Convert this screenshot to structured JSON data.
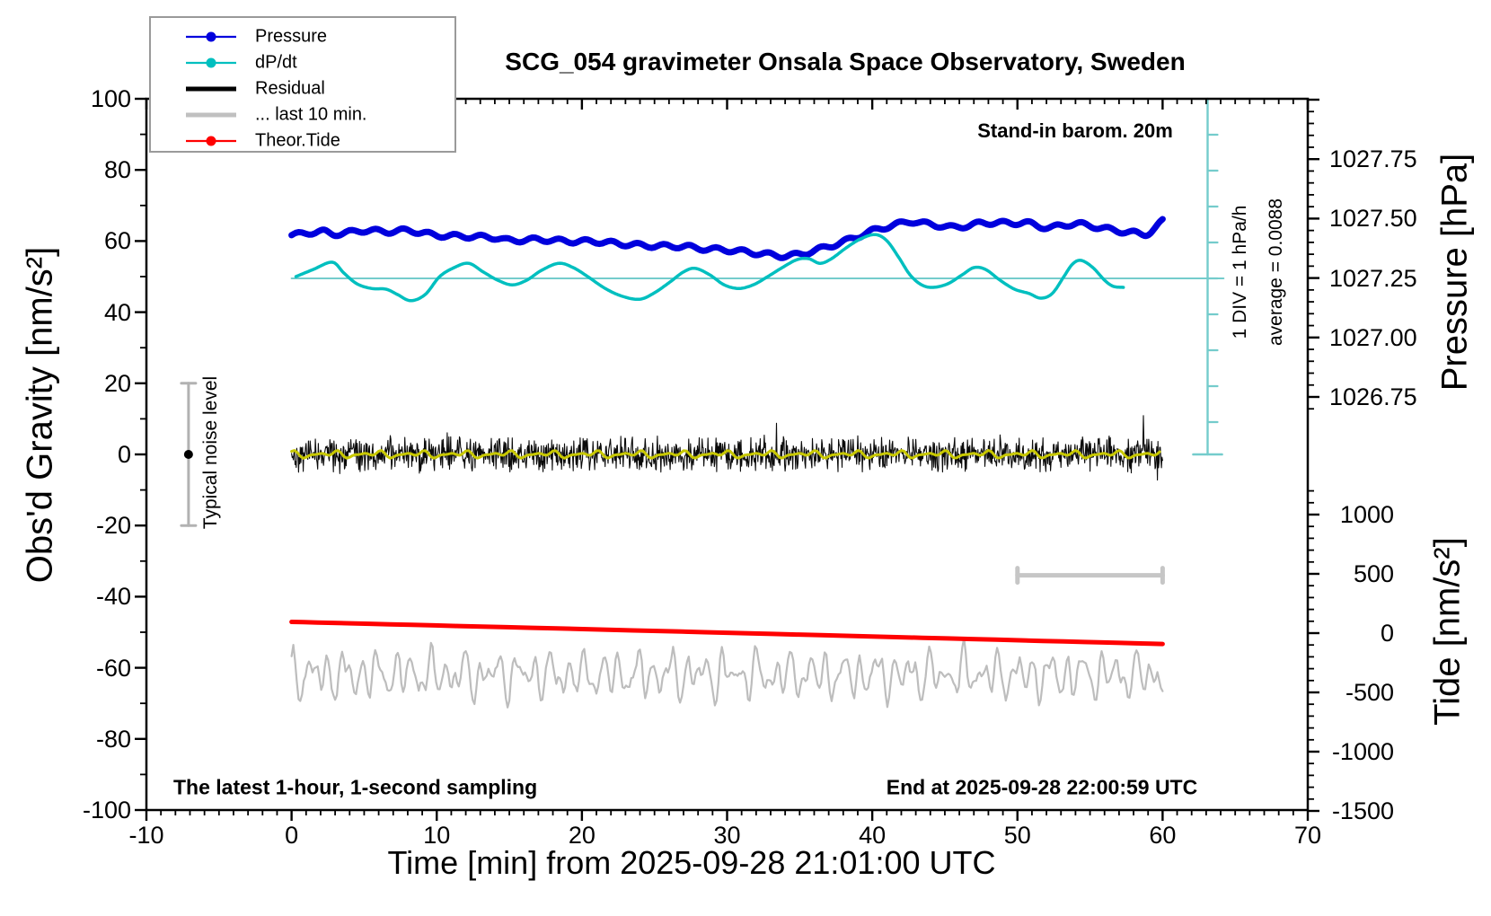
{
  "title": "SCG_054 gravimeter Onsala Space Observatory, Sweden",
  "annotations": {
    "stand_in_barom": "Stand-in barom. 20m",
    "div_scale": "1 DIV = 1 hPa/h",
    "average": "average = 0.0088",
    "typical_noise": "Typical noise level",
    "sampling": "The latest 1-hour, 1-second sampling",
    "end_at": "End at 2025-09-28 22:00:59 UTC"
  },
  "legend": {
    "items": [
      {
        "label": "Pressure",
        "color": "#0000dd",
        "thick": false,
        "marker": true
      },
      {
        "label": "dP/dt",
        "color": "#00bfbf",
        "thick": false,
        "marker": true
      },
      {
        "label": "Residual",
        "color": "#000000",
        "thick": true,
        "marker": false
      },
      {
        "label": "... last 10 min.",
        "color": "#c0c0c0",
        "thick": true,
        "marker": false
      },
      {
        "label": "Theor.Tide",
        "color": "#ff0000",
        "thick": false,
        "marker": true
      }
    ]
  },
  "axes": {
    "x": {
      "title": "Time [min] from 2025-09-28 21:01:00 UTC",
      "min": -10,
      "max": 70,
      "major": 10,
      "minor": 1,
      "tick_labels": [
        "-10",
        "0",
        "10",
        "20",
        "30",
        "40",
        "50",
        "60",
        "70"
      ],
      "tick_values": [
        -10,
        0,
        10,
        20,
        30,
        40,
        50,
        60,
        70
      ]
    },
    "gravity": {
      "title": "Obs'd Gravity [nm/s²]",
      "min": -100,
      "max": 100,
      "major": 20,
      "minor": 10,
      "tick_labels": [
        "100",
        "80",
        "60",
        "40",
        "20",
        "0",
        "-20",
        "-40",
        "-60",
        "-80",
        "-100"
      ],
      "tick_values": [
        100,
        80,
        60,
        40,
        20,
        0,
        -20,
        -40,
        -60,
        -80,
        -100
      ]
    },
    "pressure": {
      "title": "Pressure [hPa]",
      "tick_labels": [
        "1027.75",
        "1027.50",
        "1027.25",
        "1027.00",
        "1026.75"
      ],
      "tick_values": [
        1027.75,
        1027.5,
        1027.25,
        1027.0,
        1026.75
      ],
      "top_value": 1028.0,
      "minor_step": 0.05,
      "major_step": 0.25,
      "minor_floor": 1026.7
    },
    "tide": {
      "title": "Tide [nm/s²]",
      "tick_labels": [
        "1000",
        "500",
        "0",
        "-500",
        "-1000",
        "-1500"
      ],
      "tick_values": [
        1000,
        500,
        0,
        -500,
        -1000,
        -1500
      ],
      "minor_step": 100,
      "major_step": 500,
      "minor_top": 1200,
      "minor_floor": -1500
    }
  },
  "colors": {
    "blue": "#0000dd",
    "cyan": "#00bfbf",
    "cyan_light": "#74cccc",
    "red": "#ff0000",
    "black": "#0a0a0a",
    "yellow": "#c8c800",
    "gray_trace": "#bdbdbd",
    "gray_bar": "#c6c6c6",
    "gray_errorbar": "#b2b2b2"
  },
  "chart_data": {
    "type": "line",
    "title": "SCG_054 gravimeter Onsala Space Observatory, Sweden",
    "xlabel": "Time [min] from 2025-09-28 21:01:00 UTC",
    "x_range_min": [
      -10,
      70
    ],
    "axes_info": {
      "gravity": {
        "label": "Obs'd Gravity [nm/s²]",
        "range": [
          -100,
          100
        ]
      },
      "pressure": {
        "label": "Pressure [hPa]",
        "visible_ticks": [
          1027.75,
          1027.5,
          1027.25,
          1027.0,
          1026.75
        ]
      },
      "tide": {
        "label": "Tide [nm/s²]",
        "visible_ticks": [
          1000,
          500,
          0,
          -500,
          -1000,
          -1500
        ]
      }
    },
    "series": [
      {
        "name": "Pressure",
        "axis": "pressure",
        "units": "hPa",
        "ripple": {
          "amplitude_hpa": 0.009,
          "period_min": 1.8
        },
        "points": [
          [
            0,
            1027.43
          ],
          [
            2,
            1027.445
          ],
          [
            3,
            1027.435
          ],
          [
            5,
            1027.45
          ],
          [
            6.5,
            1027.445
          ],
          [
            8,
            1027.45
          ],
          [
            9,
            1027.44
          ],
          [
            10,
            1027.43
          ],
          [
            12,
            1027.425
          ],
          [
            14,
            1027.42
          ],
          [
            15,
            1027.408
          ],
          [
            17,
            1027.412
          ],
          [
            19,
            1027.405
          ],
          [
            21,
            1027.403
          ],
          [
            23,
            1027.392
          ],
          [
            25,
            1027.385
          ],
          [
            27,
            1027.383
          ],
          [
            28,
            1027.375
          ],
          [
            30,
            1027.368
          ],
          [
            31,
            1027.362
          ],
          [
            32,
            1027.355
          ],
          [
            33,
            1027.348
          ],
          [
            34,
            1027.343
          ],
          [
            35,
            1027.35
          ],
          [
            36,
            1027.365
          ],
          [
            37,
            1027.383
          ],
          [
            38,
            1027.402
          ],
          [
            39,
            1027.425
          ],
          [
            40,
            1027.448
          ],
          [
            41,
            1027.465
          ],
          [
            42,
            1027.48
          ],
          [
            42.7,
            1027.488
          ],
          [
            43.5,
            1027.48
          ],
          [
            44.5,
            1027.472
          ],
          [
            45.5,
            1027.463
          ],
          [
            46.5,
            1027.47
          ],
          [
            47.5,
            1027.48
          ],
          [
            48.5,
            1027.483
          ],
          [
            49.5,
            1027.48
          ],
          [
            50.5,
            1027.483
          ],
          [
            51.5,
            1027.468
          ],
          [
            52.3,
            1027.462
          ],
          [
            53,
            1027.47
          ],
          [
            54,
            1027.478
          ],
          [
            55,
            1027.47
          ],
          [
            56,
            1027.458
          ],
          [
            57,
            1027.448
          ],
          [
            58,
            1027.44
          ],
          [
            58.8,
            1027.435
          ],
          [
            59.4,
            1027.455
          ],
          [
            60,
            1027.49
          ]
        ]
      },
      {
        "name": "dP/dt",
        "axis": "gravity-overlay",
        "units": "hPa/h",
        "zero_at_gravity": 50,
        "div_hpa_per_h": 1,
        "points": [
          [
            0.3,
            0.05
          ],
          [
            1.5,
            0.25
          ],
          [
            2.8,
            0.45
          ],
          [
            3.6,
            0.15
          ],
          [
            4.5,
            -0.15
          ],
          [
            5.5,
            -0.28
          ],
          [
            6.5,
            -0.3
          ],
          [
            7.3,
            -0.45
          ],
          [
            8.2,
            -0.62
          ],
          [
            9.2,
            -0.45
          ],
          [
            10.2,
            0.05
          ],
          [
            11.2,
            0.3
          ],
          [
            12.2,
            0.42
          ],
          [
            13.2,
            0.18
          ],
          [
            14.2,
            -0.05
          ],
          [
            15.2,
            -0.18
          ],
          [
            16.2,
            -0.05
          ],
          [
            17.2,
            0.22
          ],
          [
            18.4,
            0.42
          ],
          [
            19.4,
            0.3
          ],
          [
            20.4,
            0.05
          ],
          [
            21.6,
            -0.28
          ],
          [
            22.8,
            -0.5
          ],
          [
            24,
            -0.58
          ],
          [
            25,
            -0.4
          ],
          [
            26,
            -0.12
          ],
          [
            27,
            0.18
          ],
          [
            27.8,
            0.28
          ],
          [
            28.8,
            0.1
          ],
          [
            29.8,
            -0.18
          ],
          [
            30.8,
            -0.28
          ],
          [
            31.8,
            -0.18
          ],
          [
            32.8,
            0.05
          ],
          [
            33.8,
            0.3
          ],
          [
            34.8,
            0.52
          ],
          [
            35.6,
            0.55
          ],
          [
            36.4,
            0.42
          ],
          [
            37.2,
            0.55
          ],
          [
            38.2,
            0.85
          ],
          [
            39.2,
            1.1
          ],
          [
            40.2,
            1.22
          ],
          [
            41,
            1.05
          ],
          [
            41.8,
            0.6
          ],
          [
            42.6,
            0.1
          ],
          [
            43.4,
            -0.18
          ],
          [
            44.2,
            -0.25
          ],
          [
            45.2,
            -0.15
          ],
          [
            46.2,
            0.1
          ],
          [
            47,
            0.3
          ],
          [
            47.8,
            0.25
          ],
          [
            48.8,
            -0.05
          ],
          [
            49.8,
            -0.3
          ],
          [
            50.8,
            -0.42
          ],
          [
            51.6,
            -0.55
          ],
          [
            52.4,
            -0.42
          ],
          [
            53.2,
            0.05
          ],
          [
            53.8,
            0.4
          ],
          [
            54.4,
            0.5
          ],
          [
            55.2,
            0.3
          ],
          [
            56,
            -0.05
          ],
          [
            56.6,
            -0.22
          ],
          [
            57.3,
            -0.25
          ]
        ]
      },
      {
        "name": "Residual",
        "axis": "gravity",
        "units": "nm/s²",
        "center": 0,
        "typical_amplitude": 5,
        "spike_amplitude": 12,
        "from_min": 0,
        "to_min": 60,
        "step_min": 0.04,
        "seed": 42
      },
      {
        "name": "Residual smoothed",
        "axis": "gravity",
        "units": "nm/s²",
        "center": 0,
        "amplitude": 1.2,
        "from_min": 0,
        "to_min": 60
      },
      {
        "name": "... last 10 min.",
        "axis": "gravity",
        "units": "nm/s²",
        "center": -62,
        "amplitude": 9,
        "from_min": 0,
        "to_min": 60,
        "seed": 9
      },
      {
        "name": "Theor.Tide",
        "axis": "tide",
        "units": "nm/s²",
        "points": [
          [
            0,
            95
          ],
          [
            30,
            3
          ],
          [
            60,
            -92
          ]
        ]
      }
    ],
    "markers": {
      "noise_errorbar": {
        "x_min": -7.1,
        "center_gravity": 0,
        "half_range_gravity": 20
      },
      "last10_bar": {
        "from_min": 50,
        "to_min": 60,
        "gravity": -34
      },
      "dpdt_ruler": {
        "x_min": 63.1,
        "div_equals": "1 hPa/h",
        "n_divs_ticked": 9
      },
      "dpdt_zero_line": {
        "at_gravity": 50,
        "from_min": 0,
        "to_min": 64.2
      }
    }
  }
}
